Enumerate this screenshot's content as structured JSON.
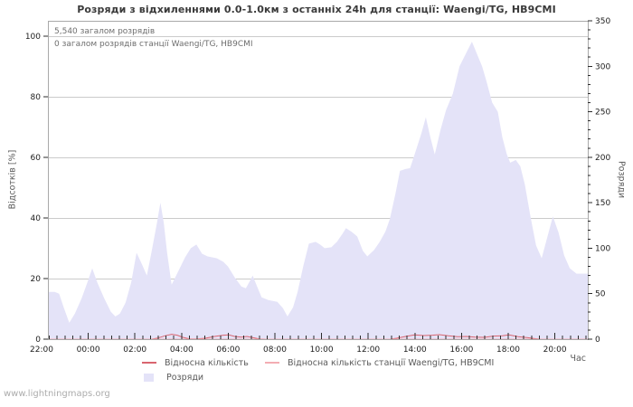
{
  "title": "Розряди з відхиленнями 0.0-1.0км з останніх 24h для станції: Waengi/TG, HB9CMI",
  "watermark": "www.lightningmaps.org",
  "annotations": {
    "total": "5,540 загалом розрядів",
    "station_total": "0 загалом розрядів станції Waengi/TG, HB9CMI"
  },
  "legend": {
    "relative": "Відносна кількість",
    "station_relative": "Відносна кількість станції Waengi/TG, HB9CMI",
    "discharges": "Розряди"
  },
  "colors": {
    "area": "#e4e3f8",
    "relative_line": "#d9656f",
    "station_line": "#f3adb3",
    "grid": "#cbcbcb",
    "border": "#a9a9a9",
    "tick": "#2b2b2b",
    "tick_label": "#1c1c1c"
  },
  "chart_data": {
    "type": "area",
    "title": "Розряди з відхиленнями 0.0-1.0км з останніх 24h для станції: Waengi/TG, HB9CMI",
    "x_axis": {
      "title": "Час",
      "labels": [
        "22:00",
        "00:00",
        "02:00",
        "04:00",
        "06:00",
        "08:00",
        "10:00",
        "12:00",
        "14:00",
        "16:00",
        "18:00",
        "20:00"
      ],
      "label_step_hours": 2,
      "minor_tick_minutes": 20,
      "span_hours": 24
    },
    "y_left": {
      "title": "Відсотків  [%]",
      "ticks": [
        0,
        20,
        40,
        60,
        80,
        100
      ],
      "max": 100,
      "grid": true
    },
    "y_right": {
      "title": "Розряди",
      "ticks": [
        0,
        50,
        100,
        150,
        200,
        250,
        300,
        350
      ],
      "minor_step": 10,
      "max": 350
    },
    "series": [
      {
        "name": "Розряди",
        "axis": "right",
        "style": "area",
        "hours_from_start": [
          0,
          0.3,
          0.5,
          0.7,
          0.95,
          1.2,
          1.5,
          1.75,
          1.97,
          2.2,
          2.5,
          2.8,
          3.0,
          3.2,
          3.45,
          3.7,
          3.94,
          4.15,
          4.4,
          4.6,
          4.85,
          5.0,
          5.15,
          5.3,
          5.5,
          5.7,
          5.9,
          6.1,
          6.35,
          6.6,
          6.85,
          7.1,
          7.5,
          7.8,
          8.0,
          8.3,
          8.6,
          8.8,
          9.0,
          9.1,
          9.3,
          9.5,
          9.8,
          10.2,
          10.45,
          10.65,
          10.9,
          11.1,
          11.35,
          11.6,
          11.9,
          12.1,
          12.3,
          12.6,
          12.85,
          13.1,
          13.25,
          13.5,
          13.75,
          14.0,
          14.2,
          14.5,
          14.75,
          15.0,
          15.2,
          15.45,
          15.65,
          15.9,
          16.1,
          16.3,
          16.6,
          16.8,
          17.0,
          17.2,
          17.45,
          17.7,
          18.0,
          18.3,
          18.6,
          18.85,
          19.1,
          19.3,
          19.5,
          19.75,
          20.0,
          20.2,
          20.4,
          20.55,
          20.8,
          21.0,
          21.2,
          21.45,
          21.7,
          21.95,
          22.2,
          22.45,
          22.7,
          22.95,
          23.2,
          23.5,
          24
        ],
        "values": [
          52,
          52,
          50,
          35,
          18,
          28,
          45,
          62,
          78,
          62,
          45,
          30,
          25,
          28,
          40,
          62,
          95,
          84,
          70,
          95,
          128,
          150,
          128,
          95,
          60,
          70,
          80,
          90,
          100,
          104,
          94,
          91,
          89,
          85,
          80,
          68,
          58,
          56,
          65,
          70,
          58,
          46,
          43,
          41,
          34,
          25,
          35,
          52,
          80,
          105,
          107,
          104,
          100,
          101,
          107,
          116,
          122,
          118,
          113,
          97,
          91,
          98,
          107,
          118,
          132,
          160,
          185,
          187,
          188,
          203,
          226,
          244,
          222,
          203,
          230,
          252,
          270,
          300,
          315,
          327,
          312,
          300,
          283,
          260,
          250,
          222,
          203,
          194,
          197,
          190,
          170,
          135,
          103,
          89,
          112,
          135,
          117,
          92,
          78,
          72,
          72
        ]
      },
      {
        "name": "Відносна кількість",
        "axis": "left",
        "style": "line",
        "hours_from_start": [
          0,
          4.6,
          4.9,
          5.2,
          5.5,
          5.75,
          6.0,
          6.3,
          6.6,
          7.0,
          7.4,
          7.8,
          8.05,
          8.3,
          8.6,
          8.85,
          9.1,
          9.4,
          9.7,
          15.2,
          15.5,
          15.9,
          16.3,
          16.7,
          17.1,
          17.4,
          17.8,
          18.2,
          18.6,
          19.0,
          19.4,
          19.8,
          20.2,
          20.5,
          20.9,
          21.3,
          21.6,
          21.9,
          24
        ],
        "values": [
          0,
          0,
          0.4,
          1.1,
          1.6,
          1.3,
          0.6,
          0.1,
          0.1,
          0.3,
          0.9,
          1.3,
          1.4,
          0.9,
          0.7,
          0.9,
          0.5,
          0.1,
          0,
          0,
          0.3,
          0.9,
          1.4,
          1.2,
          1.3,
          1.5,
          1.1,
          0.8,
          0.9,
          0.7,
          0.6,
          1.0,
          1.1,
          1.4,
          0.8,
          0.5,
          0.2,
          0,
          0
        ]
      },
      {
        "name": "Відносна кількість станції Waengi/TG, HB9CMI",
        "axis": "left",
        "style": "line",
        "hours_from_start": [
          0,
          24
        ],
        "values": [
          0,
          0
        ]
      }
    ],
    "totals": {
      "all_discharges": 5540,
      "station_discharges": 0
    }
  }
}
